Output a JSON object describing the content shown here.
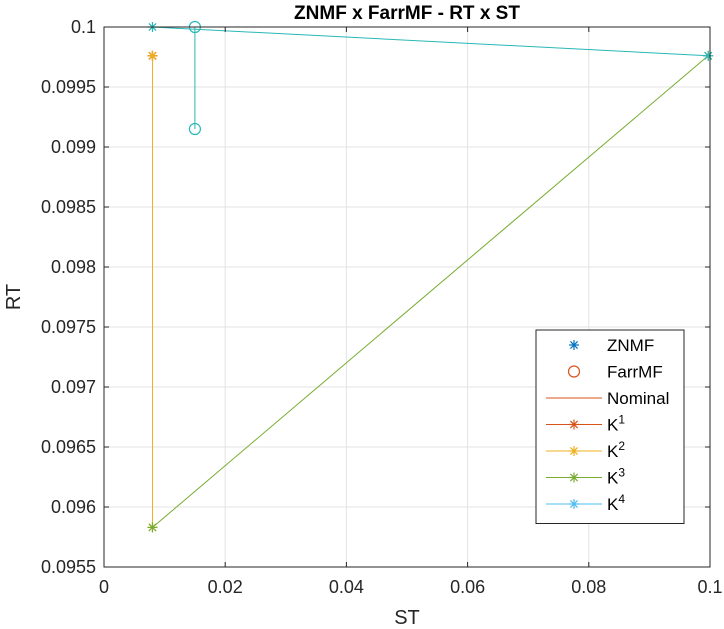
{
  "chart_data": {
    "type": "line",
    "title": "ZNMF x FarrMF - RT  x ST",
    "xlabel": "ST",
    "ylabel": "RT",
    "xlim": [
      0,
      0.1
    ],
    "ylim": [
      0.0955,
      0.1
    ],
    "x_ticks": [
      0,
      0.02,
      0.04,
      0.06,
      0.08,
      0.1
    ],
    "x_tick_labels": [
      "0",
      "0.02",
      "0.04",
      "0.06",
      "0.08",
      "0.1"
    ],
    "y_ticks": [
      0.0955,
      0.096,
      0.0965,
      0.097,
      0.0975,
      0.098,
      0.0985,
      0.099,
      0.0995,
      0.1
    ],
    "y_tick_labels": [
      "0.0955",
      "0.096",
      "0.0965",
      "0.097",
      "0.0975",
      "0.098",
      "0.0985",
      "0.099",
      "0.0995",
      "0.1"
    ],
    "grid": true,
    "legend_position": "bottom-right",
    "legend": [
      {
        "label": "ZNMF",
        "sup": "",
        "marker": "asterisk",
        "line": false,
        "color": "#0072BD"
      },
      {
        "label": "FarrMF",
        "sup": "",
        "marker": "circle",
        "line": false,
        "color": "#D95319"
      },
      {
        "label": "Nominal",
        "sup": "",
        "marker": "none",
        "line": true,
        "color": "#D95319"
      },
      {
        "label": "K",
        "sup": "1",
        "marker": "asterisk",
        "line": true,
        "color": "#D95319"
      },
      {
        "label": "K",
        "sup": "2",
        "marker": "asterisk",
        "line": true,
        "color": "#EDB120"
      },
      {
        "label": "K",
        "sup": "3",
        "marker": "asterisk",
        "line": true,
        "color": "#77AC30"
      },
      {
        "label": "K",
        "sup": "4",
        "marker": "asterisk",
        "line": true,
        "color": "#4DBEEE"
      }
    ],
    "series": [
      {
        "name": "K1 ZNMF",
        "color": "#D95319",
        "marker": "asterisk",
        "points": [
          [
            0.008,
            0.09976
          ],
          [
            0.008,
            0.09976
          ]
        ]
      },
      {
        "name": "K2 ZNMF",
        "color": "#EDB120",
        "marker": "asterisk",
        "points": [
          [
            0.008,
            0.09976
          ],
          [
            0.008,
            0.09583
          ]
        ]
      },
      {
        "name": "K3 ZNMF",
        "color": "#77AC30",
        "marker": "asterisk",
        "points": [
          [
            0.008,
            0.09583
          ],
          [
            0.0997,
            0.09976
          ]
        ]
      },
      {
        "name": "K4 ZNMF",
        "color": "#2AB7B7",
        "marker": "asterisk",
        "points": [
          [
            0.0997,
            0.09976
          ],
          [
            0.008,
            0.1
          ]
        ]
      },
      {
        "name": "K4 FarrMF",
        "color": "#2AB7B7",
        "marker": "circle",
        "points": [
          [
            0.015,
            0.1
          ],
          [
            0.015,
            0.09915
          ]
        ]
      }
    ]
  }
}
